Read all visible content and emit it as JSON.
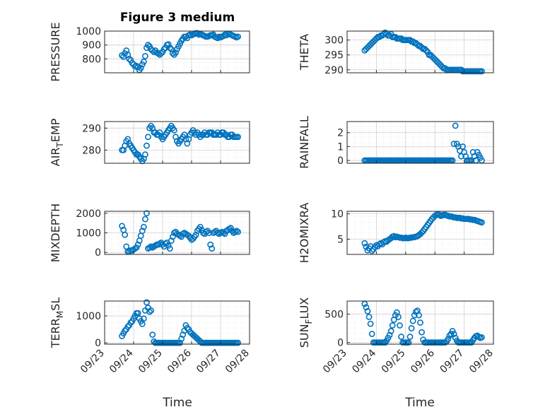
{
  "title": "Figure 3 medium",
  "xlabel": "Time",
  "x_ticks": [
    "09/23",
    "09/24",
    "09/25",
    "09/26",
    "09/27",
    "09/28"
  ],
  "colors": {
    "marker": "#0072BD",
    "axis": "#262626",
    "grid": "#DFDFDF",
    "background": "#FFFFFF"
  },
  "chart_data": [
    {
      "type": "scatter",
      "ylabel": "PRESSURE",
      "ylim": [
        700,
        1000
      ],
      "yticks": [
        "800",
        "900",
        "1000"
      ],
      "xlim": [
        0,
        5
      ],
      "grid": true,
      "x": [
        0.6,
        0.65,
        0.7,
        0.75,
        0.8,
        0.85,
        0.9,
        0.95,
        1.0,
        1.05,
        1.1,
        1.15,
        1.2,
        1.25,
        1.3,
        1.35,
        1.4,
        1.45,
        1.5,
        1.55,
        1.6,
        1.65,
        1.7,
        1.75,
        1.8,
        1.85,
        1.9,
        1.95,
        2.0,
        2.05,
        2.1,
        2.15,
        2.2,
        2.25,
        2.3,
        2.35,
        2.4,
        2.45,
        2.5,
        2.55,
        2.6,
        2.65,
        2.7,
        2.75,
        2.8,
        2.85,
        2.9,
        2.95,
        3.0,
        3.05,
        3.1,
        3.15,
        3.2,
        3.25,
        3.3,
        3.35,
        3.4,
        3.45,
        3.5,
        3.55,
        3.6,
        3.65,
        3.7,
        3.75,
        3.8,
        3.85,
        3.9,
        3.95,
        4.0,
        4.05,
        4.1,
        4.15,
        4.2,
        4.25,
        4.3,
        4.35,
        4.4,
        4.45,
        4.5,
        4.55,
        4.6
      ],
      "y": [
        825,
        815,
        840,
        860,
        830,
        800,
        790,
        770,
        760,
        745,
        750,
        740,
        720,
        735,
        760,
        780,
        820,
        880,
        900,
        890,
        870,
        860,
        850,
        860,
        845,
        840,
        830,
        840,
        850,
        870,
        880,
        900,
        905,
        880,
        870,
        840,
        830,
        845,
        870,
        890,
        910,
        930,
        945,
        960,
        960,
        950,
        970,
        975,
        970,
        975,
        980,
        985,
        985,
        975,
        980,
        975,
        970,
        965,
        960,
        960,
        965,
        970,
        970,
        975,
        960,
        955,
        950,
        960,
        955,
        960,
        965,
        975,
        970,
        980,
        980,
        975,
        970,
        965,
        960,
        955,
        960
      ]
    },
    {
      "type": "scatter",
      "ylabel": "THETA",
      "ylim": [
        289,
        303
      ],
      "yticks": [
        "290",
        "295",
        "300"
      ],
      "xlim": [
        0,
        5
      ],
      "grid": true,
      "x": [
        0.6,
        0.65,
        0.7,
        0.75,
        0.8,
        0.85,
        0.9,
        0.95,
        1.0,
        1.05,
        1.1,
        1.15,
        1.2,
        1.25,
        1.3,
        1.35,
        1.4,
        1.45,
        1.5,
        1.55,
        1.6,
        1.65,
        1.7,
        1.75,
        1.8,
        1.85,
        1.9,
        1.95,
        2.0,
        2.05,
        2.1,
        2.15,
        2.2,
        2.25,
        2.3,
        2.35,
        2.4,
        2.45,
        2.5,
        2.55,
        2.6,
        2.65,
        2.7,
        2.75,
        2.8,
        2.85,
        2.9,
        2.95,
        3.0,
        3.05,
        3.1,
        3.15,
        3.2,
        3.25,
        3.3,
        3.35,
        3.4,
        3.45,
        3.5,
        3.55,
        3.6,
        3.65,
        3.7,
        3.75,
        3.8,
        3.85,
        3.9,
        3.95,
        4.0,
        4.05,
        4.1,
        4.15,
        4.2,
        4.25,
        4.3,
        4.35,
        4.4,
        4.45,
        4.5,
        4.55,
        4.6
      ],
      "y": [
        296.5,
        297,
        297.5,
        298,
        298.5,
        299,
        299.5,
        300,
        300.5,
        301,
        301,
        301.5,
        301.5,
        302,
        302.5,
        302,
        301.5,
        301.5,
        302,
        301,
        301,
        301,
        300.5,
        300.5,
        300.5,
        300.5,
        300,
        300,
        300,
        300,
        300,
        300,
        299.5,
        299.5,
        299,
        299,
        298.5,
        298,
        298,
        297.5,
        297,
        297,
        296.5,
        296,
        295,
        295,
        294.5,
        294,
        293.5,
        293,
        292.5,
        292,
        291.5,
        291,
        290.5,
        290.5,
        290,
        290,
        290,
        290,
        290,
        290,
        290,
        290,
        290,
        290,
        290,
        289.5,
        289.5,
        289.5,
        289.5,
        289.5,
        289.5,
        289.5,
        289.5,
        289.5,
        289.5,
        289.5,
        289.5,
        289.5,
        289.5
      ]
    },
    {
      "type": "scatter",
      "ylabel": "AIR_TEMP",
      "ylim": [
        274,
        293
      ],
      "yticks": [
        "280",
        "290"
      ],
      "xlim": [
        0,
        5
      ],
      "grid": true,
      "x": [
        0.6,
        0.65,
        0.7,
        0.75,
        0.8,
        0.85,
        0.9,
        0.95,
        1.0,
        1.05,
        1.1,
        1.15,
        1.2,
        1.25,
        1.3,
        1.35,
        1.4,
        1.45,
        1.5,
        1.55,
        1.6,
        1.65,
        1.7,
        1.75,
        1.8,
        1.85,
        1.9,
        1.95,
        2.0,
        2.05,
        2.1,
        2.15,
        2.2,
        2.25,
        2.3,
        2.35,
        2.4,
        2.45,
        2.5,
        2.55,
        2.6,
        2.65,
        2.7,
        2.75,
        2.8,
        2.85,
        2.9,
        2.95,
        3.0,
        3.05,
        3.1,
        3.15,
        3.2,
        3.25,
        3.3,
        3.35,
        3.4,
        3.45,
        3.5,
        3.55,
        3.6,
        3.65,
        3.7,
        3.75,
        3.8,
        3.85,
        3.9,
        3.95,
        4.0,
        4.05,
        4.1,
        4.15,
        4.2,
        4.25,
        4.3,
        4.35,
        4.4,
        4.45,
        4.5,
        4.55,
        4.6
      ],
      "y": [
        280,
        280,
        282,
        284,
        285,
        283,
        282,
        281,
        280,
        279,
        278,
        278,
        277,
        276,
        275,
        276,
        278,
        282,
        286,
        290,
        291,
        290,
        288,
        288,
        287,
        287,
        288,
        286,
        285,
        286,
        287,
        288,
        289,
        290,
        291,
        290,
        289,
        286,
        284,
        283,
        284,
        285,
        286,
        287,
        285,
        283,
        285,
        287,
        288,
        289,
        288,
        287,
        288,
        287,
        286,
        287,
        287,
        288,
        287,
        287,
        288,
        288,
        288,
        287,
        287,
        287,
        288,
        287,
        287,
        288,
        288,
        287,
        287,
        286,
        286,
        287,
        287,
        286,
        286,
        286,
        286
      ]
    },
    {
      "type": "scatter",
      "ylabel": "RAINFALL",
      "ylim": [
        -0.2,
        2.8
      ],
      "yticks": [
        "0",
        "1",
        "2"
      ],
      "xlim": [
        0,
        5
      ],
      "grid": true,
      "x": [
        0.6,
        0.65,
        0.7,
        0.75,
        0.8,
        0.85,
        0.9,
        0.95,
        1.0,
        1.05,
        1.1,
        1.15,
        1.2,
        1.25,
        1.3,
        1.35,
        1.4,
        1.45,
        1.5,
        1.55,
        1.6,
        1.65,
        1.7,
        1.75,
        1.8,
        1.85,
        1.9,
        1.95,
        2.0,
        2.05,
        2.1,
        2.15,
        2.2,
        2.25,
        2.3,
        2.35,
        2.4,
        2.45,
        2.5,
        2.55,
        2.6,
        2.65,
        2.7,
        2.75,
        2.8,
        2.85,
        2.9,
        2.95,
        3.0,
        3.05,
        3.1,
        3.15,
        3.2,
        3.25,
        3.3,
        3.35,
        3.4,
        3.45,
        3.5,
        3.55,
        3.6,
        3.65,
        3.7,
        3.75,
        3.8,
        3.85,
        3.9,
        3.95,
        4.0,
        4.05,
        4.1,
        4.15,
        4.2,
        4.25,
        4.3,
        4.35,
        4.4,
        4.45,
        4.5,
        4.55,
        4.6
      ],
      "y": [
        0,
        0,
        0,
        0,
        0,
        0,
        0,
        0,
        0,
        0,
        0,
        0,
        0,
        0,
        0,
        0,
        0,
        0,
        0,
        0,
        0,
        0,
        0,
        0,
        0,
        0,
        0,
        0,
        0,
        0,
        0,
        0,
        0,
        0,
        0,
        0,
        0,
        0,
        0,
        0,
        0,
        0,
        0,
        0,
        0,
        0,
        0,
        0,
        0,
        0,
        0,
        0,
        0,
        0,
        0,
        0,
        0,
        0,
        0,
        0,
        0,
        1.2,
        2.5,
        1.2,
        1.0,
        0.7,
        0.3,
        1.0,
        0.6,
        0.3,
        0,
        0,
        0,
        0,
        0.6,
        0.3,
        0,
        0.6,
        0.4,
        0.2,
        0
      ]
    },
    {
      "type": "scatter",
      "ylabel": "MIXDEPTH",
      "ylim": [
        -100,
        2100
      ],
      "yticks": [
        "0",
        "1000",
        "2000"
      ],
      "xlim": [
        0,
        5
      ],
      "grid": true,
      "x": [
        0.6,
        0.65,
        0.7,
        0.75,
        0.8,
        0.85,
        0.9,
        0.95,
        1.0,
        1.05,
        1.1,
        1.15,
        1.2,
        1.25,
        1.3,
        1.35,
        1.4,
        1.45,
        1.5,
        1.55,
        1.6,
        1.65,
        1.7,
        1.75,
        1.8,
        1.85,
        1.9,
        1.95,
        2.0,
        2.05,
        2.1,
        2.15,
        2.2,
        2.25,
        2.3,
        2.35,
        2.4,
        2.45,
        2.5,
        2.55,
        2.6,
        2.65,
        2.7,
        2.75,
        2.8,
        2.85,
        2.9,
        2.95,
        3.0,
        3.05,
        3.1,
        3.15,
        3.2,
        3.25,
        3.3,
        3.35,
        3.4,
        3.45,
        3.5,
        3.55,
        3.6,
        3.65,
        3.7,
        3.75,
        3.8,
        3.85,
        3.9,
        3.95,
        4.0,
        4.05,
        4.1,
        4.15,
        4.2,
        4.25,
        4.3,
        4.35,
        4.4,
        4.45,
        4.5,
        4.55,
        4.6
      ],
      "y": [
        1350,
        1150,
        900,
        300,
        50,
        50,
        100,
        100,
        150,
        200,
        250,
        400,
        600,
        850,
        1100,
        1300,
        1700,
        2000,
        200,
        250,
        300,
        250,
        300,
        350,
        400,
        400,
        450,
        500,
        400,
        300,
        450,
        500,
        350,
        200,
        600,
        800,
        1000,
        1050,
        950,
        900,
        850,
        800,
        950,
        1000,
        950,
        900,
        850,
        750,
        650,
        700,
        800,
        900,
        1100,
        1200,
        1300,
        1150,
        1000,
        950,
        1050,
        1100,
        1000,
        400,
        200,
        1000,
        1050,
        1100,
        1000,
        950,
        1000,
        1050,
        1000,
        950,
        1100,
        1150,
        1200,
        1250,
        1100,
        1000,
        1050,
        1100,
        1050
      ]
    },
    {
      "type": "scatter",
      "ylabel": "H2OMIXRA",
      "ylim": [
        2,
        10.5
      ],
      "yticks": [
        "5",
        "10"
      ],
      "xlim": [
        0,
        5
      ],
      "grid": true,
      "x": [
        0.6,
        0.65,
        0.7,
        0.75,
        0.8,
        0.85,
        0.9,
        0.95,
        1.0,
        1.05,
        1.1,
        1.15,
        1.2,
        1.25,
        1.3,
        1.35,
        1.4,
        1.45,
        1.5,
        1.55,
        1.6,
        1.65,
        1.7,
        1.75,
        1.8,
        1.85,
        1.9,
        1.95,
        2.0,
        2.05,
        2.1,
        2.15,
        2.2,
        2.25,
        2.3,
        2.35,
        2.4,
        2.45,
        2.5,
        2.55,
        2.6,
        2.65,
        2.7,
        2.75,
        2.8,
        2.85,
        2.9,
        2.95,
        3.0,
        3.05,
        3.1,
        3.15,
        3.2,
        3.25,
        3.3,
        3.35,
        3.4,
        3.45,
        3.5,
        3.55,
        3.6,
        3.65,
        3.7,
        3.75,
        3.8,
        3.85,
        3.9,
        3.95,
        4.0,
        4.05,
        4.1,
        4.15,
        4.2,
        4.25,
        4.3,
        4.35,
        4.4,
        4.45,
        4.5,
        4.55,
        4.6
      ],
      "y": [
        4.2,
        3.5,
        2.8,
        3.2,
        3.6,
        2.7,
        3.0,
        3.5,
        3.8,
        3.6,
        4.0,
        4.2,
        4.0,
        4.4,
        4.6,
        4.5,
        4.8,
        5.0,
        5.2,
        5.5,
        5.6,
        5.4,
        5.5,
        5.4,
        5.3,
        5.3,
        5.2,
        5.2,
        5.3,
        5.2,
        5.2,
        5.3,
        5.3,
        5.4,
        5.4,
        5.5,
        5.6,
        5.8,
        6.0,
        6.3,
        6.6,
        7.0,
        7.4,
        7.8,
        8.2,
        8.6,
        9.0,
        9.3,
        9.6,
        9.8,
        10.0,
        9.8,
        9.6,
        9.7,
        9.8,
        9.8,
        9.7,
        9.6,
        9.5,
        9.5,
        9.4,
        9.3,
        9.3,
        9.2,
        9.2,
        9.2,
        9.1,
        9.1,
        9.0,
        9.0,
        9.0,
        9.0,
        8.9,
        8.9,
        8.8,
        8.8,
        8.7,
        8.6,
        8.5,
        8.4,
        8.3
      ]
    },
    {
      "type": "scatter",
      "ylabel": "TERR_MSL",
      "ylim": [
        -50,
        1550
      ],
      "yticks": [
        "0",
        "1000"
      ],
      "xlim": [
        0,
        5
      ],
      "grid": true,
      "x": [
        0.6,
        0.65,
        0.7,
        0.75,
        0.8,
        0.85,
        0.9,
        0.95,
        1.0,
        1.05,
        1.1,
        1.15,
        1.2,
        1.25,
        1.3,
        1.35,
        1.4,
        1.45,
        1.5,
        1.55,
        1.6,
        1.65,
        1.7,
        1.75,
        1.8,
        1.85,
        1.9,
        1.95,
        2.0,
        2.05,
        2.1,
        2.15,
        2.2,
        2.25,
        2.3,
        2.35,
        2.4,
        2.45,
        2.5,
        2.55,
        2.6,
        2.65,
        2.7,
        2.75,
        2.8,
        2.85,
        2.9,
        2.95,
        3.0,
        3.05,
        3.1,
        3.15,
        3.2,
        3.25,
        3.3,
        3.35,
        3.4,
        3.45,
        3.5,
        3.55,
        3.6,
        3.65,
        3.7,
        3.75,
        3.8,
        3.85,
        3.9,
        3.95,
        4.0,
        4.05,
        4.1,
        4.15,
        4.2,
        4.25,
        4.3,
        4.35,
        4.4,
        4.45,
        4.5,
        4.55,
        4.6
      ],
      "y": [
        250,
        350,
        450,
        500,
        600,
        650,
        750,
        800,
        900,
        1000,
        1100,
        1100,
        900,
        800,
        700,
        900,
        1200,
        1500,
        1300,
        1150,
        1200,
        300,
        50,
        0,
        0,
        0,
        0,
        0,
        0,
        0,
        0,
        0,
        0,
        0,
        0,
        0,
        0,
        0,
        0,
        0,
        0,
        150,
        300,
        450,
        650,
        550,
        500,
        400,
        350,
        300,
        250,
        200,
        150,
        100,
        50,
        0,
        0,
        0,
        0,
        0,
        0,
        0,
        0,
        0,
        0,
        0,
        0,
        0,
        0,
        0,
        0,
        0,
        0,
        0,
        0,
        0,
        0,
        0,
        0,
        0,
        0
      ]
    },
    {
      "type": "scatter",
      "ylabel": "SUN_FLUX",
      "ylim": [
        -30,
        730
      ],
      "yticks": [
        "0",
        "500"
      ],
      "xlim": [
        0,
        5
      ],
      "grid": true,
      "x": [
        0.6,
        0.65,
        0.7,
        0.75,
        0.8,
        0.85,
        0.9,
        0.95,
        1.0,
        1.05,
        1.1,
        1.15,
        1.2,
        1.25,
        1.3,
        1.35,
        1.4,
        1.45,
        1.5,
        1.55,
        1.6,
        1.65,
        1.7,
        1.75,
        1.8,
        1.85,
        1.9,
        1.95,
        2.0,
        2.05,
        2.1,
        2.15,
        2.2,
        2.25,
        2.3,
        2.35,
        2.4,
        2.45,
        2.5,
        2.55,
        2.6,
        2.65,
        2.7,
        2.75,
        2.8,
        2.85,
        2.9,
        2.95,
        3.0,
        3.05,
        3.1,
        3.15,
        3.2,
        3.25,
        3.3,
        3.35,
        3.4,
        3.45,
        3.5,
        3.55,
        3.6,
        3.65,
        3.7,
        3.75,
        3.8,
        3.85,
        3.9,
        3.95,
        4.0,
        4.05,
        4.1,
        4.15,
        4.2,
        4.25,
        4.3,
        4.35,
        4.4,
        4.45,
        4.5,
        4.55,
        4.6
      ],
      "y": [
        680,
        620,
        550,
        450,
        330,
        150,
        0,
        0,
        0,
        0,
        0,
        0,
        0,
        0,
        0,
        30,
        80,
        130,
        200,
        300,
        400,
        480,
        530,
        450,
        300,
        100,
        0,
        0,
        0,
        0,
        0,
        100,
        250,
        380,
        480,
        540,
        560,
        480,
        350,
        180,
        50,
        0,
        0,
        0,
        0,
        0,
        0,
        0,
        0,
        0,
        0,
        0,
        0,
        0,
        0,
        0,
        20,
        60,
        120,
        150,
        200,
        150,
        80,
        30,
        0,
        0,
        0,
        0,
        0,
        0,
        0,
        0,
        0,
        0,
        40,
        80,
        110,
        120,
        100,
        80,
        90
      ]
    }
  ]
}
